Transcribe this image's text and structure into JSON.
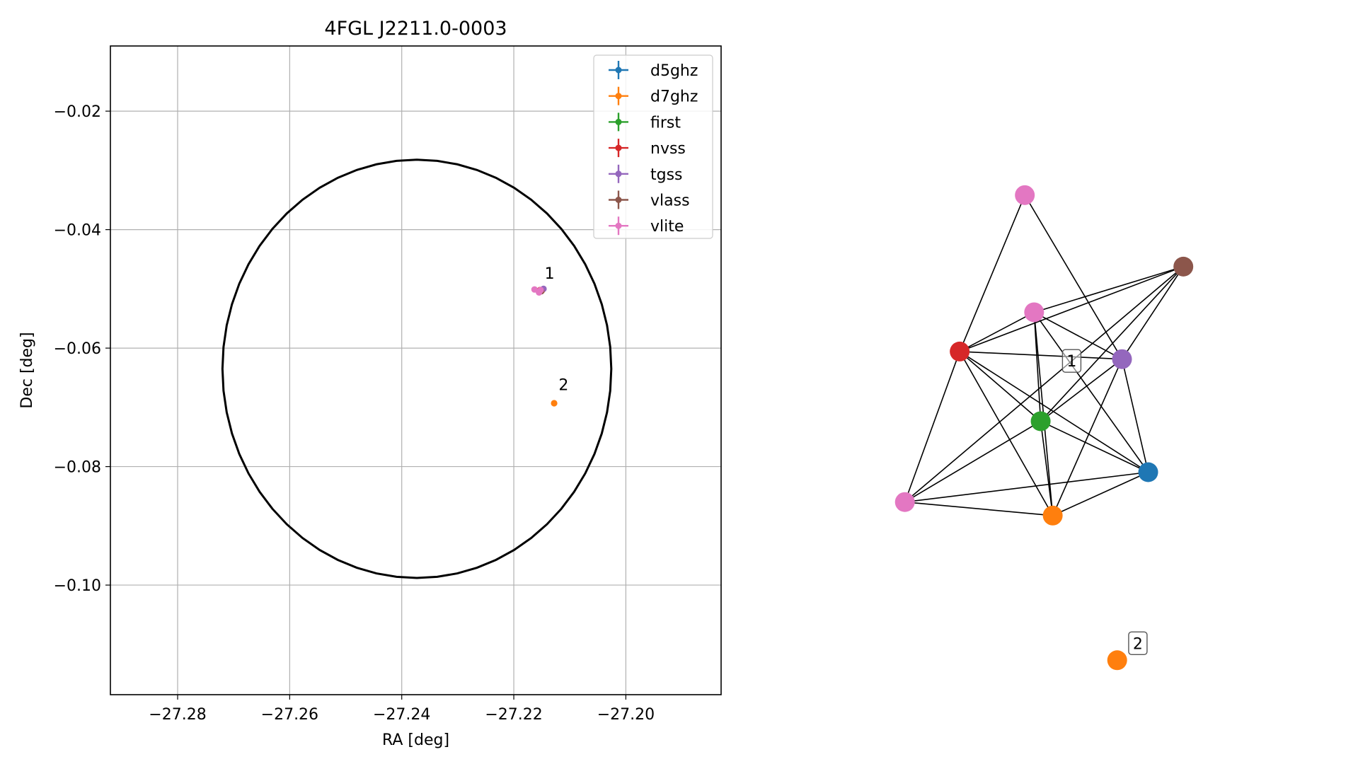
{
  "chart_data": [
    {
      "type": "scatter",
      "title": "4FGL J2211.0-0003",
      "xlabel": "RA [deg]",
      "ylabel": "Dec [deg]",
      "xlim": [
        -27.292,
        -27.183
      ],
      "ylim": [
        -0.1185,
        -0.009
      ],
      "x_ticks": [
        -27.28,
        -27.26,
        -27.24,
        -27.22,
        -27.2
      ],
      "x_tick_labels": [
        "−27.28",
        "−27.26",
        "−27.24",
        "−27.22",
        "−27.20"
      ],
      "y_ticks": [
        -0.02,
        -0.04,
        -0.06,
        -0.08,
        -0.1
      ],
      "y_tick_labels": [
        "−0.02",
        "−0.04",
        "−0.06",
        "−0.08",
        "−0.10"
      ],
      "grid": true,
      "legend_position": "top-right",
      "uncertainty_ellipse": {
        "center": [
          -27.2373,
          -0.0635
        ],
        "ra_half_width": 0.0347,
        "dec_half_height": 0.0353,
        "color": "#000000"
      },
      "series": [
        {
          "name": "d5ghz",
          "color": "#1f77b4",
          "points": [
            {
              "x": -27.215,
              "y": -0.0502
            }
          ]
        },
        {
          "name": "d7ghz",
          "color": "#ff7f0e",
          "points": [
            {
              "x": -27.215,
              "y": -0.0503
            },
            {
              "x": -27.2128,
              "y": -0.0693
            }
          ]
        },
        {
          "name": "first",
          "color": "#2ca02c",
          "points": [
            {
              "x": -27.2152,
              "y": -0.0503
            }
          ]
        },
        {
          "name": "nvss",
          "color": "#d62728",
          "points": [
            {
              "x": -27.2153,
              "y": -0.0502
            }
          ]
        },
        {
          "name": "tgss",
          "color": "#9467bd",
          "points": [
            {
              "x": -27.2147,
              "y": -0.05
            }
          ]
        },
        {
          "name": "vlass",
          "color": "#8c564b",
          "points": [
            {
              "x": -27.2151,
              "y": -0.0504
            }
          ]
        },
        {
          "name": "vlite",
          "color": "#e377c2",
          "points": [
            {
              "x": -27.2163,
              "y": -0.0501
            },
            {
              "x": -27.2152,
              "y": -0.0502
            },
            {
              "x": -27.2155,
              "y": -0.0506
            }
          ]
        }
      ],
      "annotations": [
        {
          "text": "1",
          "x": -27.2145,
          "y": -0.0483
        },
        {
          "text": "2",
          "x": -27.212,
          "y": -0.0671
        }
      ]
    },
    {
      "type": "network",
      "nodes": [
        {
          "id": "vlite_top",
          "catalog": "vlite",
          "color": "#e377c2",
          "x": 0.448,
          "y": 0.848
        },
        {
          "id": "vlass",
          "catalog": "vlass",
          "color": "#8c564b",
          "x": 0.908,
          "y": 0.726
        },
        {
          "id": "vlite_mid",
          "catalog": "vlite",
          "color": "#e377c2",
          "x": 0.475,
          "y": 0.648
        },
        {
          "id": "nvss",
          "catalog": "nvss",
          "color": "#d62728",
          "x": 0.259,
          "y": 0.581
        },
        {
          "id": "tgss",
          "catalog": "tgss",
          "color": "#9467bd",
          "x": 0.73,
          "y": 0.568
        },
        {
          "id": "first",
          "catalog": "first",
          "color": "#2ca02c",
          "x": 0.494,
          "y": 0.462
        },
        {
          "id": "d5ghz",
          "catalog": "d5ghz",
          "color": "#1f77b4",
          "x": 0.806,
          "y": 0.375
        },
        {
          "id": "vlite_low",
          "catalog": "vlite",
          "color": "#e377c2",
          "x": 0.1,
          "y": 0.324
        },
        {
          "id": "d7ghz_1",
          "catalog": "d7ghz",
          "color": "#ff7f0e",
          "x": 0.529,
          "y": 0.301
        },
        {
          "id": "d7ghz_2",
          "catalog": "d7ghz",
          "color": "#ff7f0e",
          "x": 0.716,
          "y": 0.054
        }
      ],
      "edges": [
        [
          "vlite_top",
          "nvss"
        ],
        [
          "vlite_top",
          "tgss"
        ],
        [
          "vlass",
          "vlite_mid"
        ],
        [
          "vlass",
          "nvss"
        ],
        [
          "vlass",
          "tgss"
        ],
        [
          "vlass",
          "first"
        ],
        [
          "vlass",
          "vlite_low"
        ],
        [
          "vlite_mid",
          "nvss"
        ],
        [
          "vlite_mid",
          "tgss"
        ],
        [
          "vlite_mid",
          "first"
        ],
        [
          "vlite_mid",
          "d5ghz"
        ],
        [
          "vlite_mid",
          "d7ghz_1"
        ],
        [
          "nvss",
          "tgss"
        ],
        [
          "nvss",
          "first"
        ],
        [
          "nvss",
          "d5ghz"
        ],
        [
          "nvss",
          "vlite_low"
        ],
        [
          "nvss",
          "d7ghz_1"
        ],
        [
          "tgss",
          "first"
        ],
        [
          "tgss",
          "d5ghz"
        ],
        [
          "tgss",
          "d7ghz_1"
        ],
        [
          "first",
          "d5ghz"
        ],
        [
          "first",
          "vlite_low"
        ],
        [
          "first",
          "d7ghz_1"
        ],
        [
          "d5ghz",
          "vlite_low"
        ],
        [
          "d5ghz",
          "d7ghz_1"
        ],
        [
          "vlite_low",
          "d7ghz_1"
        ]
      ],
      "labels": [
        {
          "text": "1",
          "x": 0.584,
          "y": 0.565
        },
        {
          "text": "2",
          "x": 0.776,
          "y": 0.083
        }
      ]
    }
  ]
}
